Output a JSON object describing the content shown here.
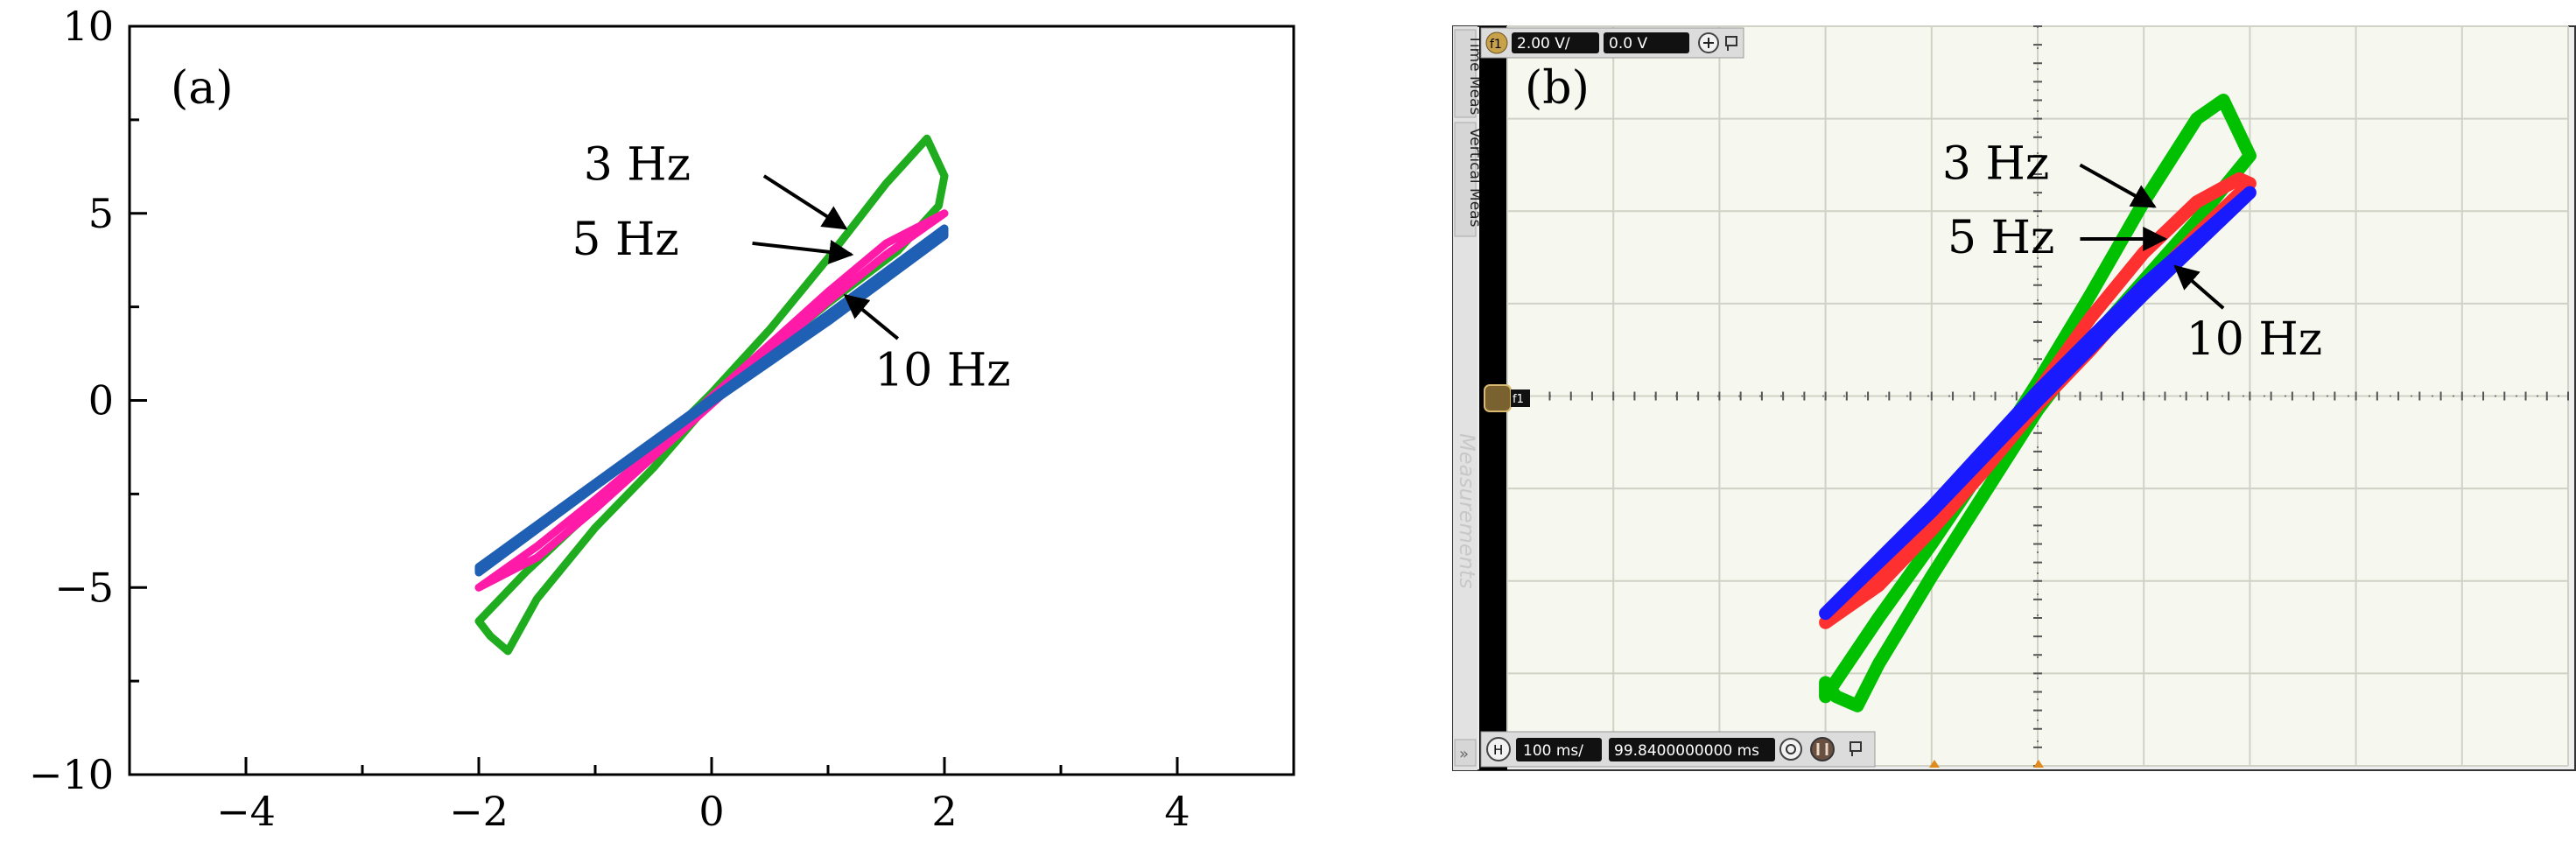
{
  "chart_data": [
    {
      "type": "line",
      "panel_label": "(a)",
      "xlim": [
        -5,
        5
      ],
      "ylim": [
        -10,
        10
      ],
      "x_ticks": [
        -4,
        -2,
        0,
        2,
        4
      ],
      "y_ticks": [
        -10,
        -5,
        0,
        5,
        10
      ],
      "x_tick_labels": [
        "−4",
        "−2",
        "0",
        "2",
        "4"
      ],
      "y_tick_labels": [
        "−10",
        "−5",
        "0",
        "5",
        "10"
      ],
      "series": [
        {
          "name": "3 Hz",
          "color": "#1fad1f",
          "upper": {
            "x": [
              -2.0,
              -1.6,
              -1.0,
              -0.5,
              0.0,
              0.5,
              1.0,
              1.5,
              1.85,
              2.0
            ],
            "y": [
              -5.9,
              -4.6,
              -2.85,
              -1.35,
              0.2,
              1.9,
              3.8,
              5.8,
              7.0,
              6.0
            ]
          },
          "lower": {
            "x": [
              2.0,
              1.95,
              1.6,
              1.0,
              0.5,
              0.0,
              -0.5,
              -1.0,
              -1.5,
              -1.75,
              -1.9,
              -2.0
            ],
            "y": [
              6.0,
              5.2,
              4.0,
              2.6,
              1.35,
              0.0,
              -1.8,
              -3.4,
              -5.3,
              -6.7,
              -6.3,
              -5.9
            ]
          }
        },
        {
          "name": "5 Hz",
          "color": "#ff1aa8",
          "upper": {
            "x": [
              -2.0,
              -1.5,
              -1.0,
              -0.5,
              0.0,
              0.5,
              1.0,
              1.5,
              2.0
            ],
            "y": [
              -5.0,
              -3.9,
              -2.65,
              -1.35,
              0.1,
              1.5,
              2.9,
              4.2,
              5.0
            ]
          },
          "lower": {
            "x": [
              2.0,
              1.5,
              1.0,
              0.5,
              0.0,
              -0.5,
              -1.0,
              -1.5,
              -2.0
            ],
            "y": [
              5.0,
              3.9,
              2.65,
              1.3,
              -0.1,
              -1.5,
              -2.9,
              -4.2,
              -5.0
            ]
          }
        },
        {
          "name": "10 Hz",
          "color": "#1f5fb4",
          "upper": {
            "x": [
              -2.0,
              -1.0,
              0.0,
              1.0,
              2.0
            ],
            "y": [
              -4.45,
              -2.2,
              0.05,
              2.3,
              4.6
            ]
          },
          "lower": {
            "x": [
              2.0,
              1.0,
              0.0,
              -1.0,
              -2.0
            ],
            "y": [
              4.4,
              2.1,
              -0.05,
              -2.3,
              -4.6
            ]
          }
        }
      ],
      "annotations": [
        {
          "text": "3 Hz",
          "text_at": [
            -1.1,
            5.9
          ],
          "arrow_from": [
            0.45,
            6.0
          ],
          "arrow_to": [
            1.15,
            4.6
          ]
        },
        {
          "text": "5 Hz",
          "text_at": [
            -1.2,
            3.9
          ],
          "arrow_from": [
            0.35,
            4.2
          ],
          "arrow_to": [
            1.2,
            3.9
          ]
        },
        {
          "text": "10 Hz",
          "text_at": [
            1.4,
            0.4
          ],
          "arrow_from": [
            1.6,
            1.65
          ],
          "arrow_to": [
            1.15,
            2.8
          ]
        }
      ]
    },
    {
      "type": "line",
      "panel_label": "(b)",
      "grid": true,
      "grid_divisions": {
        "x": 10,
        "y": 8
      },
      "xlim": [
        -5,
        5
      ],
      "ylim": [
        -4,
        4
      ],
      "series": [
        {
          "name": "3 Hz",
          "color": "#00c000",
          "upper": {
            "x": [
              -2.0,
              -1.5,
              -1.0,
              -0.5,
              0.0,
              0.5,
              1.0,
              1.5,
              1.75,
              2.0
            ],
            "y": [
              -3.25,
              -2.4,
              -1.6,
              -0.75,
              0.15,
              1.1,
              2.1,
              3.0,
              3.2,
              2.6
            ]
          },
          "lower": {
            "x": [
              2.0,
              1.5,
              1.0,
              0.5,
              0.0,
              -0.5,
              -1.0,
              -1.5,
              -1.7,
              -1.9,
              -2.0
            ],
            "y": [
              2.6,
              1.9,
              1.25,
              0.6,
              -0.15,
              -1.05,
              -1.95,
              -2.9,
              -3.35,
              -3.25,
              -3.1
            ]
          }
        },
        {
          "name": "5 Hz",
          "color": "#ff3030",
          "upper": {
            "x": [
              -2.0,
              -1.5,
              -1.0,
              -0.5,
              0.0,
              0.5,
              1.0,
              1.5,
              1.9,
              2.0
            ],
            "y": [
              -2.45,
              -1.95,
              -1.35,
              -0.7,
              0.05,
              0.85,
              1.55,
              2.1,
              2.35,
              2.3
            ]
          },
          "lower": {
            "x": [
              2.0,
              1.5,
              1.0,
              0.5,
              0.0,
              -0.5,
              -1.0,
              -1.5,
              -2.0
            ],
            "y": [
              2.3,
              1.75,
              1.15,
              0.5,
              -0.1,
              -0.8,
              -1.45,
              -2.05,
              -2.45
            ]
          }
        },
        {
          "name": "10 Hz",
          "color": "#1a1aff",
          "upper": {
            "x": [
              -2.0,
              -1.0,
              0.0,
              1.0,
              2.0
            ],
            "y": [
              -2.35,
              -1.2,
              0.05,
              1.2,
              2.2
            ]
          },
          "lower": {
            "x": [
              2.0,
              1.0,
              0.0,
              -1.0,
              -2.0
            ],
            "y": [
              2.2,
              1.1,
              -0.05,
              -1.25,
              -2.35
            ]
          }
        }
      ],
      "annotations": [
        {
          "text": "3 Hz",
          "text_at": [
            -0.9,
            2.35
          ],
          "arrow_from": [
            0.4,
            2.5
          ],
          "arrow_to": [
            1.1,
            2.05
          ]
        },
        {
          "text": "5 Hz",
          "text_at": [
            -0.85,
            1.55
          ],
          "arrow_from": [
            0.4,
            1.7
          ],
          "arrow_to": [
            1.2,
            1.7
          ]
        },
        {
          "text": "10 Hz",
          "text_at": [
            1.4,
            0.45
          ],
          "arrow_from": [
            1.75,
            0.95
          ],
          "arrow_to": [
            1.3,
            1.4
          ]
        }
      ],
      "scope_ui": {
        "channel_badge": "f1",
        "volts_per_div": "2.00 V/",
        "offset": "0.0 V",
        "time_per_div": "100 ms/",
        "delay": "99.8400000000 ms",
        "horizontal_badge": "H",
        "side_tabs": [
          "Time Meas",
          "Vertical Meas"
        ],
        "side_watermark": "Measurements",
        "ref_marker": "f1"
      }
    }
  ]
}
